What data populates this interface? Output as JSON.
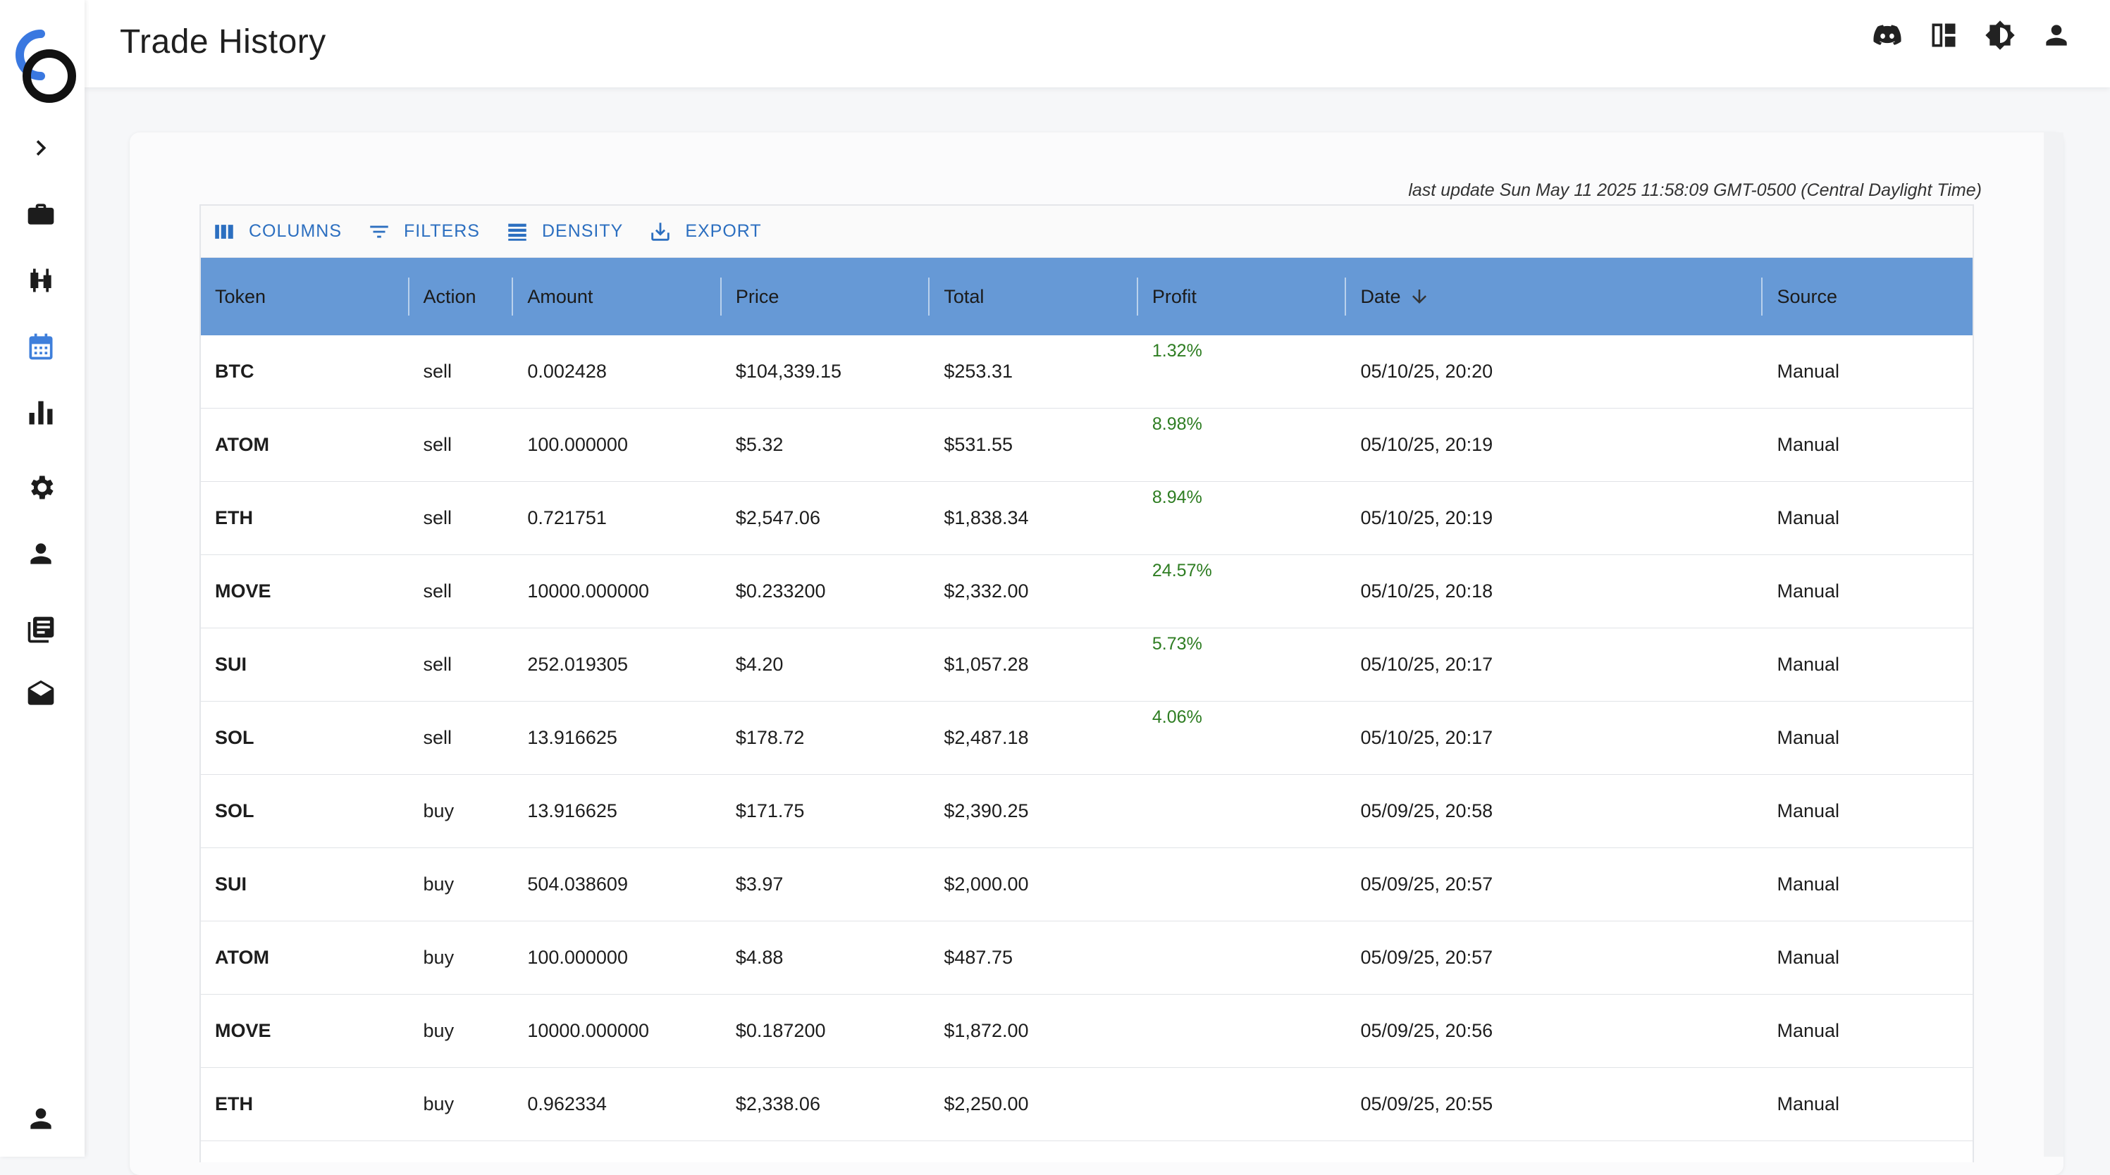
{
  "app": {
    "page_title": "Trade History"
  },
  "sidebar": {
    "icons": [
      "expand-chevron-icon",
      "briefcase-icon",
      "candlestick-icon",
      "calendar-icon",
      "bar-chart-icon",
      "gear-icon",
      "person-icon",
      "news-icon",
      "mail-open-icon",
      "account-icon"
    ],
    "active": "calendar-icon",
    "accent_color": "#3f7fdb"
  },
  "topbar": {
    "icons": [
      "discord-icon",
      "dashboard-icon",
      "brightness-icon",
      "account-icon"
    ]
  },
  "last_update": "last update Sun May 11 2025 11:58:09 GMT-0500 (Central Daylight Time)",
  "toolbar": {
    "columns_label": "COLUMNS",
    "filters_label": "FILTERS",
    "density_label": "DENSITY",
    "export_label": "EXPORT",
    "accent_color": "#2c6fc0"
  },
  "table": {
    "header_color": "#6699d6",
    "profit_color": "#2e7d22",
    "columns": [
      "Token",
      "Action",
      "Amount",
      "Price",
      "Total",
      "Profit",
      "Date",
      "Source"
    ],
    "sort": {
      "column": "Date",
      "direction": "descending"
    },
    "rows": [
      {
        "token": "BTC",
        "action": "sell",
        "amount": "0.002428",
        "price": "$104,339.15",
        "total": "$253.31",
        "profit": "1.32%",
        "date": "05/10/25, 20:20",
        "source": "Manual"
      },
      {
        "token": "ATOM",
        "action": "sell",
        "amount": "100.000000",
        "price": "$5.32",
        "total": "$531.55",
        "profit": "8.98%",
        "date": "05/10/25, 20:19",
        "source": "Manual"
      },
      {
        "token": "ETH",
        "action": "sell",
        "amount": "0.721751",
        "price": "$2,547.06",
        "total": "$1,838.34",
        "profit": "8.94%",
        "date": "05/10/25, 20:19",
        "source": "Manual"
      },
      {
        "token": "MOVE",
        "action": "sell",
        "amount": "10000.000000",
        "price": "$0.233200",
        "total": "$2,332.00",
        "profit": "24.57%",
        "date": "05/10/25, 20:18",
        "source": "Manual"
      },
      {
        "token": "SUI",
        "action": "sell",
        "amount": "252.019305",
        "price": "$4.20",
        "total": "$1,057.28",
        "profit": "5.73%",
        "date": "05/10/25, 20:17",
        "source": "Manual"
      },
      {
        "token": "SOL",
        "action": "sell",
        "amount": "13.916625",
        "price": "$178.72",
        "total": "$2,487.18",
        "profit": "4.06%",
        "date": "05/10/25, 20:17",
        "source": "Manual"
      },
      {
        "token": "SOL",
        "action": "buy",
        "amount": "13.916625",
        "price": "$171.75",
        "total": "$2,390.25",
        "profit": "",
        "date": "05/09/25, 20:58",
        "source": "Manual"
      },
      {
        "token": "SUI",
        "action": "buy",
        "amount": "504.038609",
        "price": "$3.97",
        "total": "$2,000.00",
        "profit": "",
        "date": "05/09/25, 20:57",
        "source": "Manual"
      },
      {
        "token": "ATOM",
        "action": "buy",
        "amount": "100.000000",
        "price": "$4.88",
        "total": "$487.75",
        "profit": "",
        "date": "05/09/25, 20:57",
        "source": "Manual"
      },
      {
        "token": "MOVE",
        "action": "buy",
        "amount": "10000.000000",
        "price": "$0.187200",
        "total": "$1,872.00",
        "profit": "",
        "date": "05/09/25, 20:56",
        "source": "Manual"
      },
      {
        "token": "ETH",
        "action": "buy",
        "amount": "0.962334",
        "price": "$2,338.06",
        "total": "$2,250.00",
        "profit": "",
        "date": "05/09/25, 20:55",
        "source": "Manual"
      }
    ]
  }
}
